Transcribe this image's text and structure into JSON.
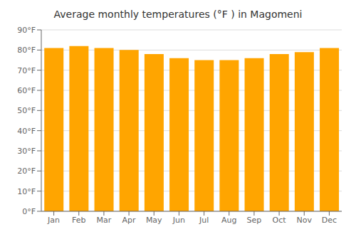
{
  "chart_data": {
    "type": "bar",
    "title": "Average monthly temperatures (°F ) in Magomeni",
    "categories": [
      "Jan",
      "Feb",
      "Mar",
      "Apr",
      "May",
      "Jun",
      "Jul",
      "Aug",
      "Sep",
      "Oct",
      "Nov",
      "Dec"
    ],
    "values": [
      81,
      82,
      81,
      80,
      78,
      76,
      75,
      75,
      76,
      78,
      79,
      81
    ],
    "color": "#FFA500",
    "ylim": [
      0,
      90
    ],
    "yticks": [
      {
        "value": 0,
        "label": "0°F"
      },
      {
        "value": 10,
        "label": "10°F"
      },
      {
        "value": 20,
        "label": "20°F"
      },
      {
        "value": 30,
        "label": "30°F"
      },
      {
        "value": 40,
        "label": "40°F"
      },
      {
        "value": 50,
        "label": "50°F"
      },
      {
        "value": 60,
        "label": "60°F"
      },
      {
        "value": 70,
        "label": "70°F"
      },
      {
        "value": 80,
        "label": "80°F"
      },
      {
        "value": 90,
        "label": "90°F"
      }
    ],
    "grid": true
  }
}
